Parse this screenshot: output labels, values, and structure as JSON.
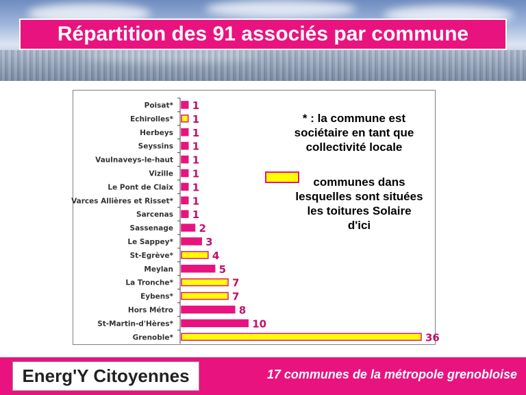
{
  "title": "Répartition des 91 associés par commune",
  "note": {
    "line1": "* : la commune est",
    "line2": "sociétaire en tant que",
    "line3": "collectivité locale"
  },
  "legend": {
    "line1": "communes dans",
    "line2": "lesquelles sont situées",
    "line3": "les toitures Solaire",
    "line4": "d'ici"
  },
  "footer": {
    "logo": "Energ'Y Citoyennes",
    "tagline": "17 communes de la métropole grenobloise"
  },
  "colors": {
    "magenta": "#e8137f",
    "yellow": "#ffff00"
  },
  "chart_data": {
    "type": "bar",
    "orientation": "horizontal",
    "categories": [
      "Poisat*",
      "Echirolles*",
      "Herbeys",
      "Seyssins",
      "Vaulnaveys-le-haut",
      "Vizille",
      "Le Pont de Claix",
      "Varces Allières et Risset*",
      "Sarcenas",
      "Sassenage",
      "Le Sappey*",
      "St-Egrève*",
      "Meylan",
      "La Tronche*",
      "Eybens*",
      "Hors Métro",
      "St-Martin-d'Hères*",
      "Grenoble*"
    ],
    "values": [
      1,
      1,
      1,
      1,
      1,
      1,
      1,
      1,
      1,
      2,
      3,
      4,
      5,
      7,
      7,
      8,
      10,
      36
    ],
    "highlighted_solar": [
      false,
      true,
      false,
      false,
      false,
      false,
      false,
      false,
      false,
      false,
      false,
      true,
      false,
      true,
      true,
      false,
      false,
      true
    ],
    "xlim": [
      0,
      36
    ],
    "data_labels": true
  }
}
